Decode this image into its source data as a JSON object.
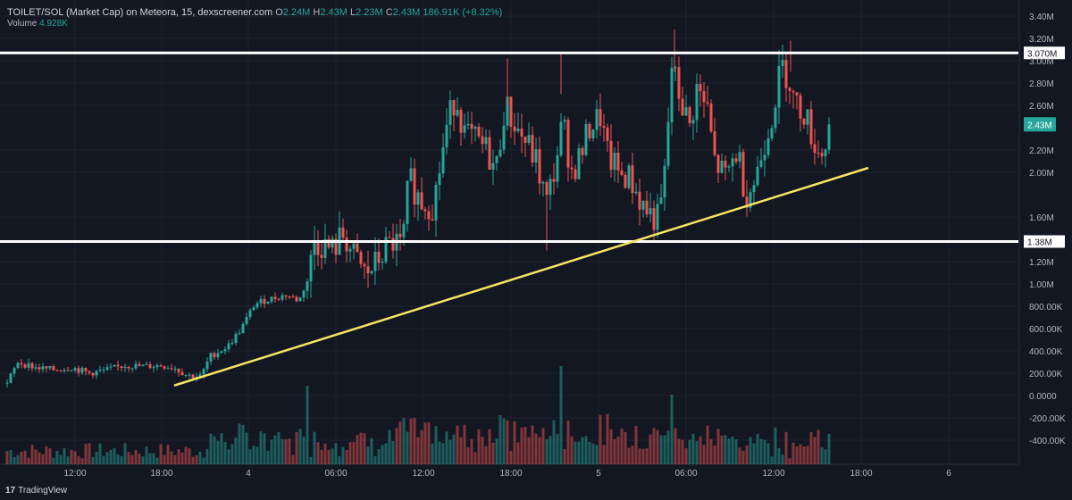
{
  "header": {
    "symbol_line": "TOILET/SOL (Market Cap) on Meteora, 15, dexscreener.com",
    "open_label": "O",
    "open_value": "2.24M",
    "high_label": "H",
    "high_value": "2.43M",
    "low_label": "L",
    "low_value": "2.23M",
    "close_label": "C",
    "close_value": "2.43M",
    "change": "186.91K (+8.32%)",
    "volume_label": "Volume",
    "volume_value": "4.928K"
  },
  "branding": {
    "logo_text": "TradingView",
    "logo_mark": "17"
  },
  "colors": {
    "background": "#131722",
    "up": "#26a69a",
    "down": "#ef5350",
    "trendline": "#f5e663",
    "hline": "#ffffff",
    "grid": "#1e222d",
    "text": "#b2b5be"
  },
  "chart_data": {
    "type": "candlestick",
    "title": "TOILET/SOL (Market Cap) on Meteora, 15, dexscreener.com",
    "y_axis": {
      "ylim": [
        -0.5,
        3.45
      ],
      "unit": "M",
      "ticks": [
        {
          "v": 3.4,
          "label": "3.40M"
        },
        {
          "v": 3.2,
          "label": "3.20M"
        },
        {
          "v": 3.0,
          "label": "3.00M"
        },
        {
          "v": 2.8,
          "label": "2.80M"
        },
        {
          "v": 2.6,
          "label": "2.60M"
        },
        {
          "v": 2.2,
          "label": "2.20M"
        },
        {
          "v": 2.0,
          "label": "2.00M"
        },
        {
          "v": 1.6,
          "label": "1.60M"
        },
        {
          "v": 1.2,
          "label": "1.20M"
        },
        {
          "v": 1.0,
          "label": "1.00M"
        },
        {
          "v": 0.8,
          "label": "800.00K"
        },
        {
          "v": 0.6,
          "label": "600.00K"
        },
        {
          "v": 0.4,
          "label": "400.00K"
        },
        {
          "v": 0.2,
          "label": "200.00K"
        },
        {
          "v": 0.0,
          "label": "0.0000"
        },
        {
          "v": -0.2,
          "label": "-200.00K"
        },
        {
          "v": -0.4,
          "label": "-400.00K"
        }
      ]
    },
    "x_axis": {
      "xlim": [
        0,
        1120
      ],
      "ticks": [
        {
          "x": 84,
          "label": "12:00"
        },
        {
          "x": 181,
          "label": "18:00"
        },
        {
          "x": 278,
          "label": "4"
        },
        {
          "x": 376,
          "label": "06:00"
        },
        {
          "x": 474,
          "label": "12:00"
        },
        {
          "x": 572,
          "label": "18:00"
        },
        {
          "x": 670,
          "label": "5"
        },
        {
          "x": 768,
          "label": "06:00"
        },
        {
          "x": 866,
          "label": "12:00"
        },
        {
          "x": 964,
          "label": "18:00"
        },
        {
          "x": 1062,
          "label": "6"
        }
      ]
    },
    "horizontal_lines": [
      {
        "value": 3.07,
        "label": "3.070M"
      },
      {
        "value": 1.38,
        "label": "1.38M"
      }
    ],
    "last_price": {
      "value": 2.43,
      "label": "2.43M"
    },
    "trendline": {
      "from": [
        195,
        0.09
      ],
      "to": [
        972,
        2.04
      ]
    },
    "close_anchors": [
      [
        8,
        0.11
      ],
      [
        20,
        0.3
      ],
      [
        40,
        0.25
      ],
      [
        60,
        0.23
      ],
      [
        80,
        0.25
      ],
      [
        100,
        0.2
      ],
      [
        120,
        0.23
      ],
      [
        140,
        0.27
      ],
      [
        160,
        0.26
      ],
      [
        180,
        0.27
      ],
      [
        195,
        0.25
      ],
      [
        210,
        0.18
      ],
      [
        225,
        0.17
      ],
      [
        235,
        0.35
      ],
      [
        255,
        0.44
      ],
      [
        270,
        0.6
      ],
      [
        285,
        0.82
      ],
      [
        300,
        0.86
      ],
      [
        320,
        0.9
      ],
      [
        335,
        0.85
      ],
      [
        345,
        1.06
      ],
      [
        352,
        1.38
      ],
      [
        362,
        1.35
      ],
      [
        372,
        1.3
      ],
      [
        385,
        1.45
      ],
      [
        395,
        1.25
      ],
      [
        410,
        1.08
      ],
      [
        420,
        1.17
      ],
      [
        430,
        1.3
      ],
      [
        442,
        1.38
      ],
      [
        450,
        1.3
      ],
      [
        458,
        1.95
      ],
      [
        470,
        1.75
      ],
      [
        485,
        1.7
      ],
      [
        500,
        2.4
      ],
      [
        510,
        2.7
      ],
      [
        520,
        2.35
      ],
      [
        532,
        2.28
      ],
      [
        545,
        2.2
      ],
      [
        555,
        2.0
      ],
      [
        565,
        2.6
      ],
      [
        578,
        2.4
      ],
      [
        590,
        2.25
      ],
      [
        600,
        2.1
      ],
      [
        612,
        1.72
      ],
      [
        620,
        2.0
      ],
      [
        630,
        2.45
      ],
      [
        640,
        2.0
      ],
      [
        650,
        2.15
      ],
      [
        660,
        2.4
      ],
      [
        672,
        2.5
      ],
      [
        680,
        2.15
      ],
      [
        692,
        2.0
      ],
      [
        705,
        1.95
      ],
      [
        718,
        1.72
      ],
      [
        730,
        1.6
      ],
      [
        738,
        1.58
      ],
      [
        745,
        2.05
      ],
      [
        752,
        2.95
      ],
      [
        760,
        2.7
      ],
      [
        772,
        2.4
      ],
      [
        780,
        2.75
      ],
      [
        792,
        2.55
      ],
      [
        800,
        2.1
      ],
      [
        812,
        1.95
      ],
      [
        825,
        2.2
      ],
      [
        835,
        1.8
      ],
      [
        845,
        1.92
      ],
      [
        855,
        2.25
      ],
      [
        865,
        2.55
      ],
      [
        875,
        2.95
      ],
      [
        883,
        2.85
      ],
      [
        890,
        2.6
      ],
      [
        900,
        2.55
      ],
      [
        910,
        2.3
      ],
      [
        918,
        2.15
      ],
      [
        925,
        2.28
      ],
      [
        930,
        2.43
      ]
    ],
    "volume_bars": "about 230 fifteen-minute bars; tallest near x=628, x=753, x=345 and x=278; up bars green, down bars red"
  }
}
